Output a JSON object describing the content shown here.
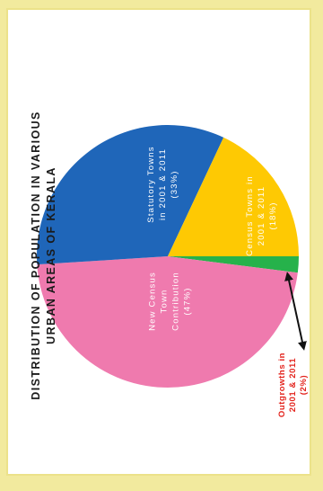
{
  "colors": {
    "background": "#f2ea9e",
    "panel": "#ffffff",
    "title": "#1a1a1a",
    "slice_label": "#ffffff",
    "outgrowths_label": "#e3231c",
    "arrow": "#111111"
  },
  "chart_data": {
    "type": "pie",
    "orientation": "rotated 90 degrees clockwise",
    "title": "DISTRIBUTION OF POPULATION IN VARIOUS URBAN AREAS OF KERALA",
    "title_lines": [
      "DISTRIBUTION OF POPULATION IN VARIOUS",
      "URBAN AREAS OF KERALA"
    ],
    "slices": [
      {
        "name": "Statutory Towns in 2001 & 2011",
        "value": 33,
        "label": "(33%)",
        "label_lines": [
          "Statutory Towns",
          "in 2001 & 2011",
          "(33%)"
        ],
        "color": "#1f66b9"
      },
      {
        "name": "Census Towns in 2001 & 2011",
        "value": 18,
        "label": "(18%)",
        "label_lines": [
          "Census Towns in",
          "2001 & 2011",
          "(18%)"
        ],
        "color": "#fec903"
      },
      {
        "name": "Outgrowths in 2001 & 2011",
        "value": 2,
        "label": "(2%)",
        "label_lines": [
          "Outgrowths in",
          "2001 & 2011",
          "(2%)"
        ],
        "color": "#26b24b"
      },
      {
        "name": "New Census Town Contribution",
        "value": 47,
        "label": "(47%)",
        "label_lines": [
          "New Census",
          "Town",
          "Contribution",
          "(47%)"
        ],
        "color": "#ef7aae"
      }
    ]
  }
}
